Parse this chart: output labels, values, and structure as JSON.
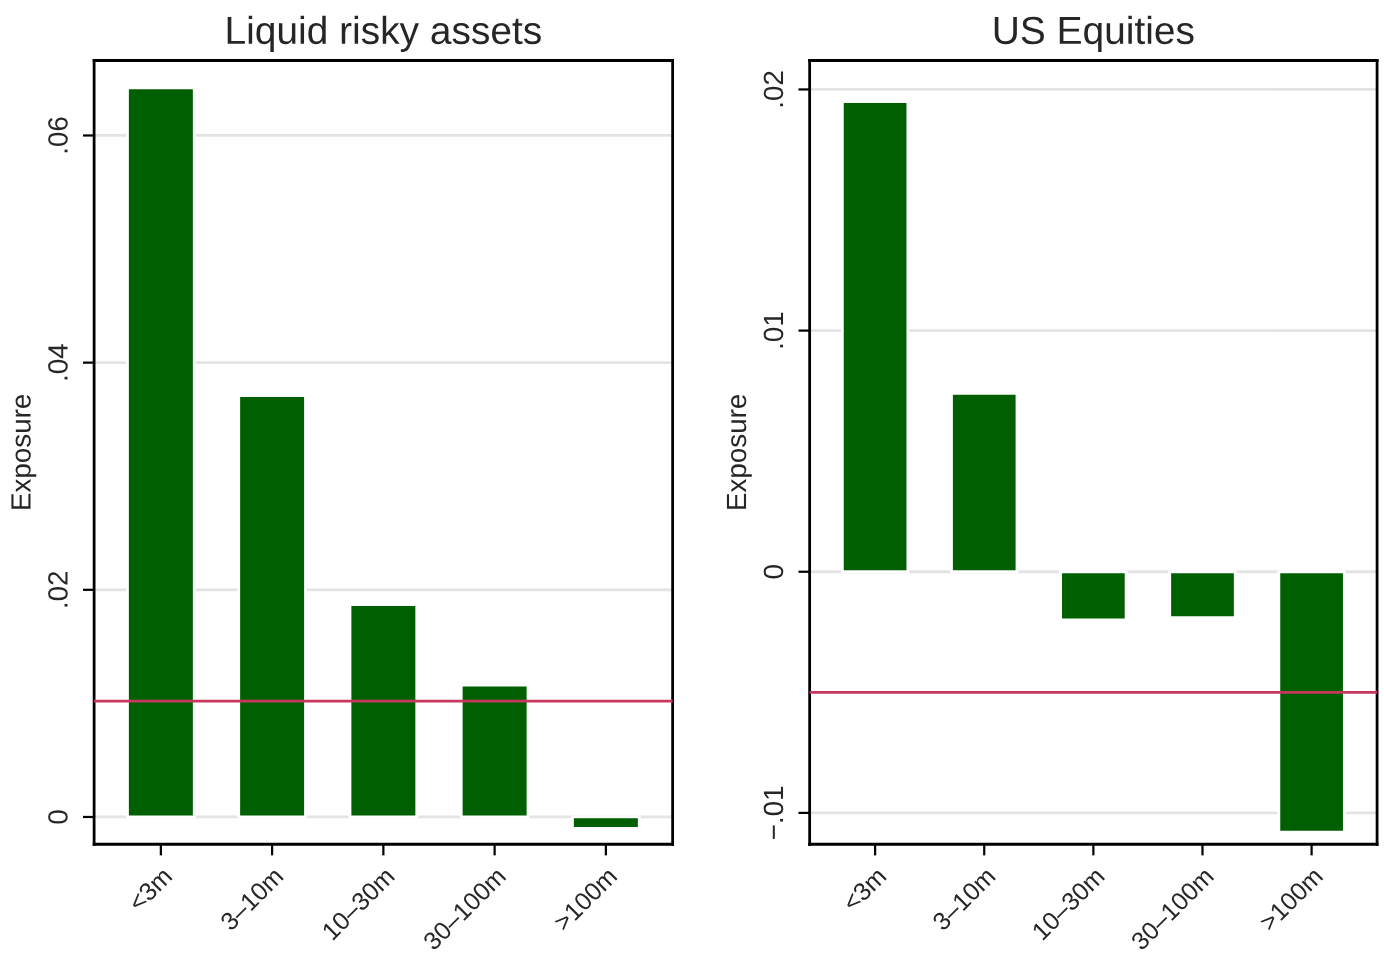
{
  "chart_data": [
    {
      "type": "bar",
      "title": "Liquid risky assets",
      "ylabel": "Exposure",
      "categories": [
        "<3m",
        "3–10m",
        "10–30m",
        "30–100m",
        ">100m"
      ],
      "series": [
        {
          "color": "#005f00",
          "values": [
            0.0642,
            0.0371,
            0.0187,
            0.0116,
            -0.001
          ]
        }
      ],
      "ylim": [
        -0.0024,
        0.0666
      ],
      "yticks": [
        {
          "value": 0,
          "label": "0"
        },
        {
          "value": 0.02,
          "label": ".02"
        },
        {
          "value": 0.04,
          "label": ".04"
        },
        {
          "value": 0.06,
          "label": ".06"
        }
      ],
      "ref_lines": [
        {
          "axis": "y",
          "value": 0.0102,
          "color": "#c8385e"
        }
      ],
      "grid": "y",
      "legend": false
    },
    {
      "type": "bar",
      "title": "US Equities",
      "ylabel": "Exposure",
      "categories": [
        "<3m",
        "3–10m",
        "10–30m",
        "30–100m",
        ">100m"
      ],
      "series": [
        {
          "color": "#005f00",
          "values": [
            0.0195,
            0.0074,
            -0.002,
            -0.0019,
            -0.0108
          ]
        }
      ],
      "ylim": [
        -0.0113,
        0.0212
      ],
      "yticks": [
        {
          "value": -0.01,
          "label": "−.01"
        },
        {
          "value": 0,
          "label": "0"
        },
        {
          "value": 0.01,
          "label": ".01"
        },
        {
          "value": 0.02,
          "label": ".02"
        }
      ],
      "ref_lines": [
        {
          "axis": "y",
          "value": -0.005,
          "color": "#c8385e"
        }
      ],
      "grid": "y",
      "legend": false
    }
  ]
}
